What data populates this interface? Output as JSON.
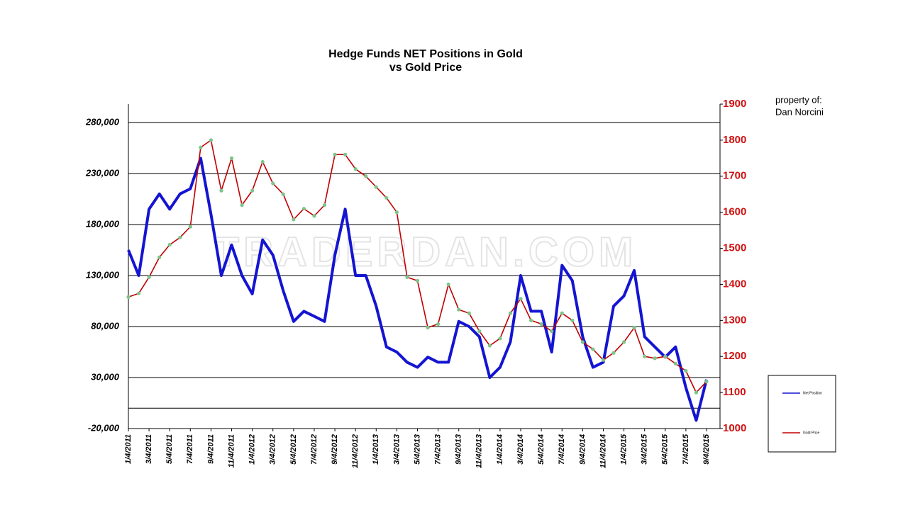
{
  "chart_data": {
    "type": "line",
    "title": "Hedge Funds NET Positions in Gold",
    "subtitle": "vs Gold Price",
    "annotation": "property of:",
    "annotation2": "Dan Norcini",
    "watermark": "TRADERDAN.COM",
    "categories": [
      "1/4/2011",
      null,
      "3/4/2011",
      null,
      "5/4/2011",
      null,
      "7/4/2011",
      null,
      "9/4/2011",
      null,
      "11/4/2011",
      null,
      "1/4/2012",
      null,
      "3/4/2012",
      null,
      "5/4/2012",
      null,
      "7/4/2012",
      null,
      "9/4/2012",
      null,
      "11/4/2012",
      null,
      "1/4/2013",
      null,
      "3/4/2013",
      null,
      "5/4/2013",
      null,
      "7/4/2013",
      null,
      "9/4/2013",
      null,
      "11/4/2013",
      null,
      "1/4/2014",
      null,
      "3/4/2014",
      null,
      "5/4/2014",
      null,
      "7/4/2014",
      null,
      "9/4/2014",
      null,
      "11/4/2014",
      null,
      "1/4/2015",
      null,
      "3/4/2015",
      null,
      "5/4/2015",
      null,
      "7/4/2015",
      null,
      "9/4/2015"
    ],
    "series": [
      {
        "name": "Net Position",
        "color": "#1414d2",
        "axis": "y",
        "values": [
          155000,
          130000,
          195000,
          210000,
          195000,
          210000,
          215000,
          245000,
          190000,
          130000,
          160000,
          130000,
          112000,
          165000,
          150000,
          115000,
          85000,
          95000,
          90000,
          85000,
          150000,
          195000,
          130000,
          130000,
          100000,
          60000,
          55000,
          45000,
          40000,
          50000,
          45000,
          45000,
          85000,
          80000,
          70000,
          30000,
          40000,
          65000,
          130000,
          95000,
          95000,
          55000,
          140000,
          125000,
          70000,
          40000,
          45000,
          100000,
          110000,
          135000,
          70000,
          60000,
          50000,
          60000,
          20000,
          -12000,
          28000
        ]
      },
      {
        "name": "Gold Price",
        "color": "#c00000",
        "axis": "y2",
        "values": [
          1365,
          1375,
          1420,
          1475,
          1510,
          1530,
          1560,
          1780,
          1800,
          1660,
          1750,
          1620,
          1660,
          1740,
          1680,
          1650,
          1580,
          1610,
          1590,
          1620,
          1760,
          1760,
          1720,
          1700,
          1670,
          1640,
          1600,
          1420,
          1410,
          1280,
          1290,
          1400,
          1330,
          1320,
          1270,
          1230,
          1250,
          1320,
          1360,
          1300,
          1290,
          1270,
          1320,
          1300,
          1240,
          1220,
          1190,
          1210,
          1240,
          1280,
          1200,
          1195,
          1200,
          1180,
          1160,
          1100,
          1130
        ]
      }
    ],
    "marker_color": "#7dc48a",
    "ylim": [
      -20000,
      298000
    ],
    "yticks": [
      {
        "value": -20000,
        "label": "-20,000"
      },
      {
        "value": 30000,
        "label": "30,000"
      },
      {
        "value": 80000,
        "label": "80,000"
      },
      {
        "value": 130000,
        "label": "130,000"
      },
      {
        "value": 180000,
        "label": "180,000"
      },
      {
        "value": 230000,
        "label": "230,000"
      },
      {
        "value": 280000,
        "label": "280,000"
      }
    ],
    "y2lim": [
      1000,
      1900
    ],
    "y2ticks": [
      1000,
      1100,
      1200,
      1300,
      1400,
      1500,
      1600,
      1700,
      1800,
      1900
    ],
    "y2color": "#d01010",
    "grid": true,
    "legend": "right"
  }
}
